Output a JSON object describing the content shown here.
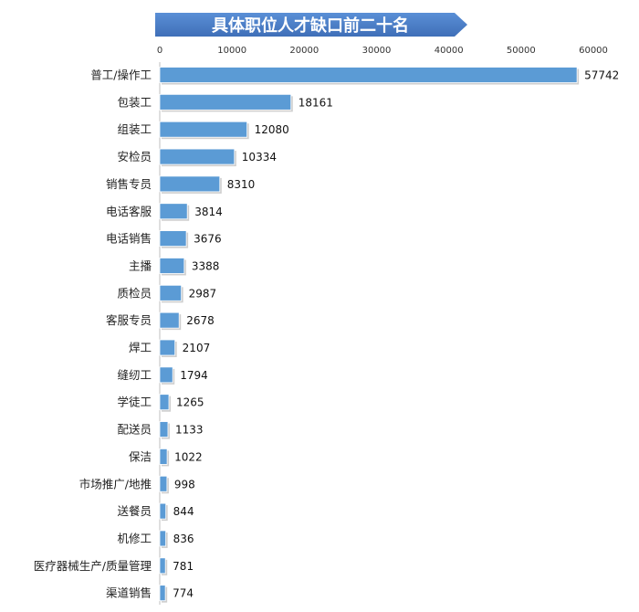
{
  "chart_data": {
    "type": "bar",
    "orientation": "horizontal",
    "title": "具体职位人才缺口前二十名",
    "xlabel": "",
    "ylabel": "",
    "xlim": [
      0,
      60000
    ],
    "x_ticks": [
      0,
      10000,
      20000,
      30000,
      40000,
      50000,
      60000
    ],
    "x_axis_position": "top",
    "grid": false,
    "legend": "none",
    "bar_color": "#5b9bd5",
    "title_color": "#4a7ec9",
    "categories": [
      "普工/操作工",
      "包装工",
      "组装工",
      "安检员",
      "销售专员",
      "电话客服",
      "电话销售",
      "主播",
      "质检员",
      "客服专员",
      "焊工",
      "缝纫工",
      "学徒工",
      "配送员",
      "保洁",
      "市场推广/地推",
      "送餐员",
      "机修工",
      "医疗器械生产/质量管理",
      "渠道销售"
    ],
    "values": [
      57742,
      18161,
      12080,
      10334,
      8310,
      3814,
      3676,
      3388,
      2987,
      2678,
      2107,
      1794,
      1265,
      1133,
      1022,
      998,
      844,
      836,
      781,
      774
    ]
  }
}
